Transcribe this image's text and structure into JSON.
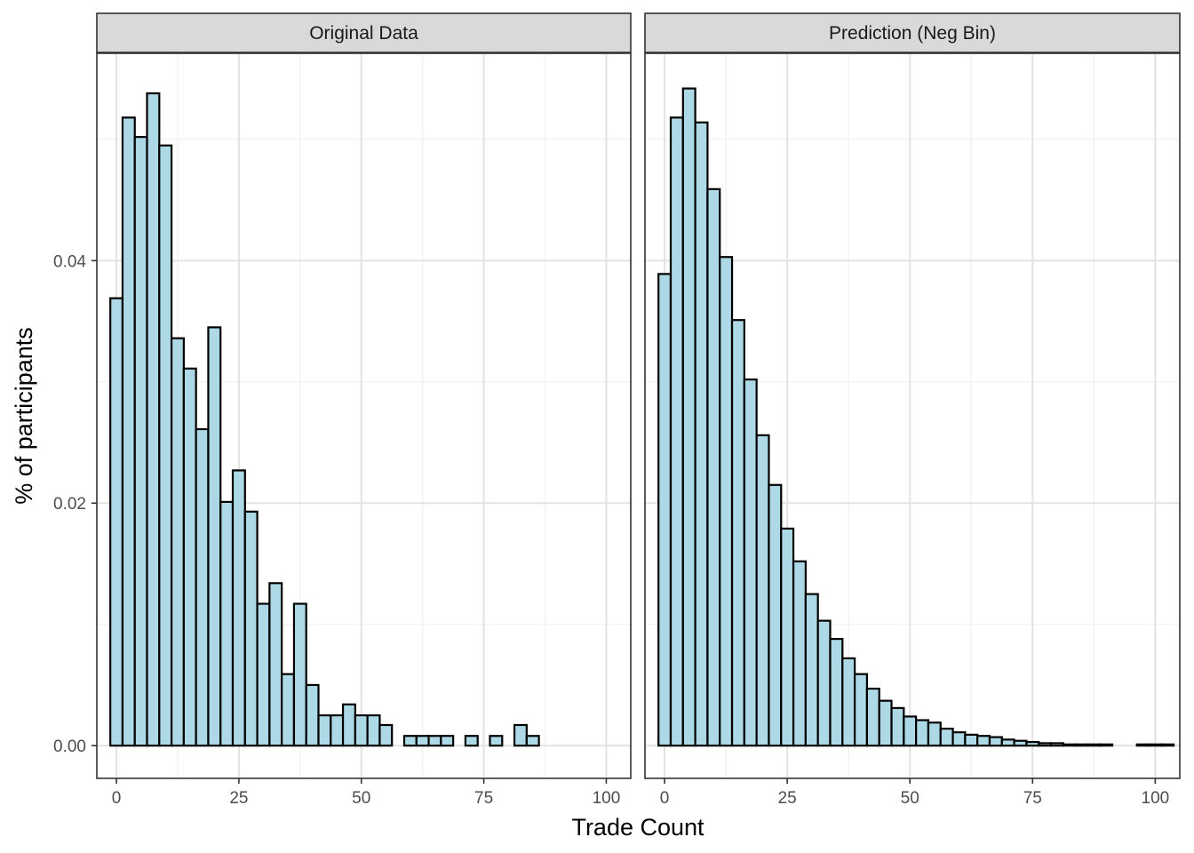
{
  "chart_data": {
    "type": "bar",
    "subtype": "histogram-facets",
    "xlabel": "Trade Count",
    "ylabel": "% of participants",
    "bin_width": 2.5,
    "xlim": [
      -4,
      105
    ],
    "ylim": [
      -0.0027,
      0.0571
    ],
    "x_ticks": [
      0,
      25,
      50,
      75,
      100
    ],
    "x_tick_labels": [
      "0",
      "25",
      "50",
      "75",
      "100"
    ],
    "y_ticks": [
      0,
      0.02,
      0.04
    ],
    "y_tick_labels": [
      "0.00",
      "0.02",
      "0.04"
    ],
    "grid": true,
    "bar_fill": "#add8e6",
    "bar_stroke": "#000000",
    "strip_fill": "#d9d9d9",
    "facets": [
      {
        "name": "Original Data",
        "x": [
          0,
          2.5,
          5,
          7.5,
          10,
          12.5,
          15,
          17.5,
          20,
          22.5,
          25,
          27.5,
          30,
          32.5,
          35,
          37.5,
          40,
          42.5,
          45,
          47.5,
          50,
          52.5,
          55,
          57.5,
          60,
          62.5,
          65,
          67.5,
          70,
          72.5,
          75,
          77.5,
          80,
          82.5,
          85,
          87.5,
          90,
          92.5,
          95,
          97.5,
          100,
          102.5
        ],
        "values": [
          0.0369,
          0.0518,
          0.0502,
          0.0538,
          0.0495,
          0.0336,
          0.0311,
          0.0261,
          0.0345,
          0.0201,
          0.0227,
          0.0193,
          0.0117,
          0.0134,
          0.0059,
          0.0117,
          0.005,
          0.0025,
          0.0025,
          0.0034,
          0.0025,
          0.0025,
          0.0017,
          0,
          0.0008,
          0.0008,
          0.0008,
          0.0008,
          0,
          0.0008,
          0,
          0.0008,
          0,
          0.0017,
          0.0008,
          0,
          0,
          0,
          0,
          0,
          0,
          0
        ]
      },
      {
        "name": "Prediction (Neg Bin)",
        "x": [
          0,
          2.5,
          5,
          7.5,
          10,
          12.5,
          15,
          17.5,
          20,
          22.5,
          25,
          27.5,
          30,
          32.5,
          35,
          37.5,
          40,
          42.5,
          45,
          47.5,
          50,
          52.5,
          55,
          57.5,
          60,
          62.5,
          65,
          67.5,
          70,
          72.5,
          75,
          77.5,
          80,
          82.5,
          85,
          87.5,
          90,
          92.5,
          95,
          97.5,
          100,
          102.5
        ],
        "values": [
          0.0389,
          0.0518,
          0.0542,
          0.0514,
          0.0459,
          0.0403,
          0.0351,
          0.0302,
          0.0256,
          0.0215,
          0.0179,
          0.0152,
          0.0125,
          0.0103,
          0.0088,
          0.0072,
          0.0059,
          0.0047,
          0.0037,
          0.0031,
          0.0024,
          0.0021,
          0.0019,
          0.0014,
          0.0011,
          0.0009,
          0.0008,
          0.0007,
          0.0005,
          0.0004,
          0.0003,
          0.0002,
          0.0002,
          0.0001,
          0.0001,
          0.0001,
          0.0001,
          0,
          0,
          0.0001,
          0.0001,
          0.0001
        ]
      }
    ]
  }
}
